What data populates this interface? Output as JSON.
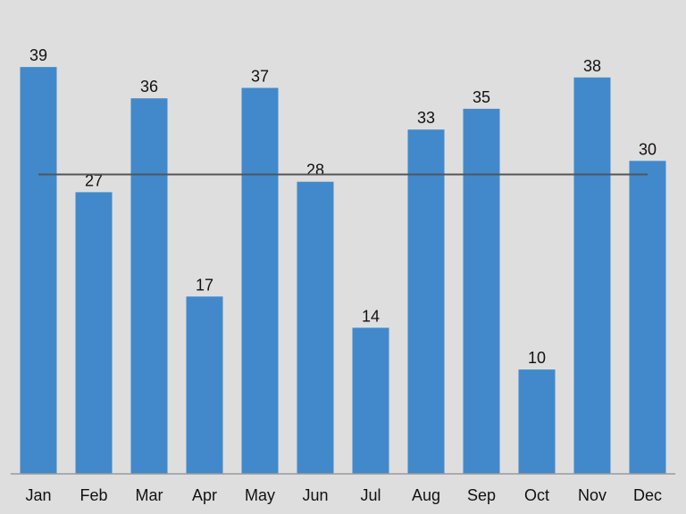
{
  "chart_data": {
    "type": "bar",
    "categories": [
      "Jan",
      "Feb",
      "Mar",
      "Apr",
      "May",
      "Jun",
      "Jul",
      "Aug",
      "Sep",
      "Oct",
      "Nov",
      "Dec"
    ],
    "values": [
      39,
      27,
      36,
      17,
      37,
      28,
      14,
      33,
      35,
      10,
      38,
      30
    ],
    "average": 28.7,
    "ylim": [
      0,
      40
    ],
    "grid": false,
    "legend": "none",
    "colors": {
      "bar": "#4189cb",
      "average_line": "#555555",
      "background": "#dedede",
      "axis": "#9a9a9a"
    }
  }
}
